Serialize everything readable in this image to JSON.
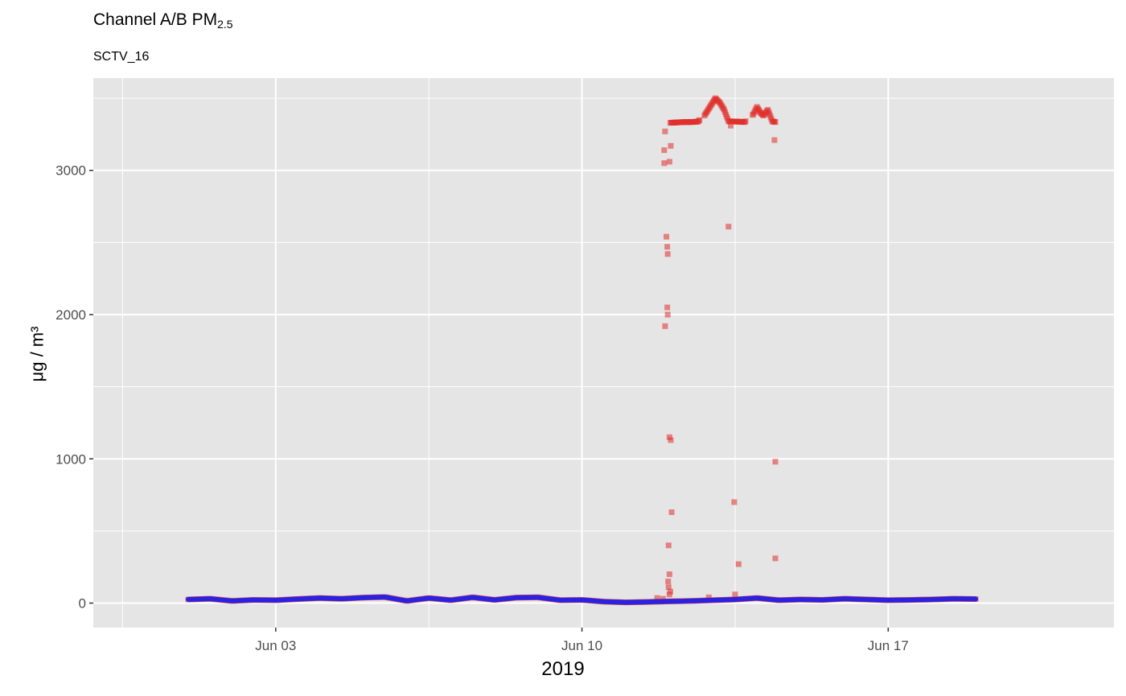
{
  "title": {
    "main": "Channel A/B PM",
    "sub": "2.5"
  },
  "subtitle": "SCTV_16",
  "chart_data": {
    "type": "scatter",
    "title": "Channel A/B PM2.5",
    "subtitle": "SCTV_16",
    "xlabel": "2019",
    "ylabel": "μg / m³",
    "x_unit": "days since Jun 03, 2019 00:00",
    "xlim": [
      -4.17,
      19.16
    ],
    "ylim": [
      -170,
      3640
    ],
    "x_ticks": [
      {
        "value": 0,
        "label": "Jun 03"
      },
      {
        "value": 7,
        "label": "Jun 10"
      },
      {
        "value": 14,
        "label": "Jun 17"
      }
    ],
    "y_ticks": [
      {
        "value": 0,
        "label": "0"
      },
      {
        "value": 1000,
        "label": "1000"
      },
      {
        "value": 2000,
        "label": "2000"
      },
      {
        "value": 3000,
        "label": "3000"
      }
    ],
    "grid": true,
    "legend": "none",
    "colors": {
      "panel": "#e5e5e5",
      "grid": "#ffffff",
      "channel_a": "#e0302c",
      "channel_b": "#2a22e0"
    },
    "series": [
      {
        "channel": "A",
        "marker": "square",
        "baseline": [
          [
            -2.0,
            25
          ],
          [
            -1.5,
            30
          ],
          [
            -1.0,
            15
          ],
          [
            -0.5,
            22
          ],
          [
            0.0,
            20
          ],
          [
            0.5,
            28
          ],
          [
            1.0,
            35
          ],
          [
            1.5,
            30
          ],
          [
            2.0,
            38
          ],
          [
            2.5,
            42
          ],
          [
            3.0,
            15
          ],
          [
            3.5,
            35
          ],
          [
            4.0,
            20
          ],
          [
            4.5,
            40
          ],
          [
            5.0,
            22
          ],
          [
            5.5,
            38
          ],
          [
            6.0,
            40
          ],
          [
            6.5,
            20
          ],
          [
            7.0,
            22
          ],
          [
            7.5,
            10
          ],
          [
            8.0,
            5
          ],
          [
            8.5,
            8
          ],
          [
            9.0,
            12
          ],
          [
            9.5,
            15
          ],
          [
            10.0,
            20
          ],
          [
            10.5,
            25
          ],
          [
            11.0,
            35
          ],
          [
            11.5,
            20
          ],
          [
            12.0,
            25
          ],
          [
            12.5,
            22
          ],
          [
            13.0,
            30
          ],
          [
            13.5,
            25
          ],
          [
            14.0,
            20
          ],
          [
            14.5,
            22
          ],
          [
            15.0,
            25
          ],
          [
            15.5,
            30
          ],
          [
            16.0,
            28
          ]
        ],
        "elevated": [
          [
            9.02,
            3330
          ],
          [
            9.15,
            3332
          ],
          [
            9.35,
            3335
          ],
          [
            9.5,
            3335
          ],
          [
            9.65,
            3338
          ],
          [
            9.8,
            3380
          ],
          [
            10.05,
            3500
          ],
          [
            10.15,
            3470
          ],
          [
            10.25,
            3420
          ],
          [
            10.35,
            3340
          ],
          [
            10.55,
            3338
          ],
          [
            10.72,
            3335
          ],
          [
            10.92,
            3390
          ],
          [
            11.0,
            3440
          ],
          [
            11.08,
            3400
          ],
          [
            11.15,
            3380
          ],
          [
            11.25,
            3420
          ],
          [
            11.35,
            3340
          ],
          [
            11.42,
            3335
          ]
        ],
        "outliers": [
          [
            8.88,
            3050
          ],
          [
            8.88,
            3140
          ],
          [
            8.9,
            3270
          ],
          [
            8.93,
            2540
          ],
          [
            8.95,
            2470
          ],
          [
            8.96,
            2420
          ],
          [
            8.9,
            1920
          ],
          [
            8.95,
            2050
          ],
          [
            8.96,
            2000
          ],
          [
            9.0,
            1150
          ],
          [
            9.03,
            1130
          ],
          [
            9.05,
            630
          ],
          [
            8.98,
            400
          ],
          [
            9.0,
            200
          ],
          [
            8.97,
            150
          ],
          [
            8.98,
            110
          ],
          [
            9.02,
            80
          ],
          [
            9.0,
            60
          ],
          [
            9.0,
            3060
          ],
          [
            9.03,
            3170
          ],
          [
            8.72,
            35
          ],
          [
            8.85,
            30
          ],
          [
            9.9,
            40
          ],
          [
            10.4,
            3310
          ],
          [
            10.35,
            2610
          ],
          [
            10.48,
            700
          ],
          [
            10.58,
            270
          ],
          [
            10.5,
            60
          ],
          [
            11.4,
            3210
          ],
          [
            11.42,
            980
          ],
          [
            11.42,
            310
          ]
        ]
      },
      {
        "channel": "B",
        "marker": "line",
        "values": [
          [
            -2.0,
            25
          ],
          [
            -1.5,
            30
          ],
          [
            -1.0,
            15
          ],
          [
            -0.5,
            22
          ],
          [
            0.0,
            20
          ],
          [
            0.5,
            28
          ],
          [
            1.0,
            35
          ],
          [
            1.5,
            30
          ],
          [
            2.0,
            38
          ],
          [
            2.5,
            42
          ],
          [
            3.0,
            15
          ],
          [
            3.5,
            35
          ],
          [
            4.0,
            20
          ],
          [
            4.5,
            40
          ],
          [
            5.0,
            22
          ],
          [
            5.5,
            38
          ],
          [
            6.0,
            40
          ],
          [
            6.5,
            20
          ],
          [
            7.0,
            22
          ],
          [
            7.5,
            10
          ],
          [
            8.0,
            5
          ],
          [
            8.5,
            8
          ],
          [
            9.0,
            12
          ],
          [
            9.5,
            15
          ],
          [
            10.0,
            20
          ],
          [
            10.5,
            25
          ],
          [
            11.0,
            35
          ],
          [
            11.5,
            20
          ],
          [
            12.0,
            25
          ],
          [
            12.5,
            22
          ],
          [
            13.0,
            30
          ],
          [
            13.5,
            25
          ],
          [
            14.0,
            20
          ],
          [
            14.5,
            22
          ],
          [
            15.0,
            25
          ],
          [
            15.5,
            30
          ],
          [
            16.0,
            28
          ]
        ]
      }
    ]
  }
}
